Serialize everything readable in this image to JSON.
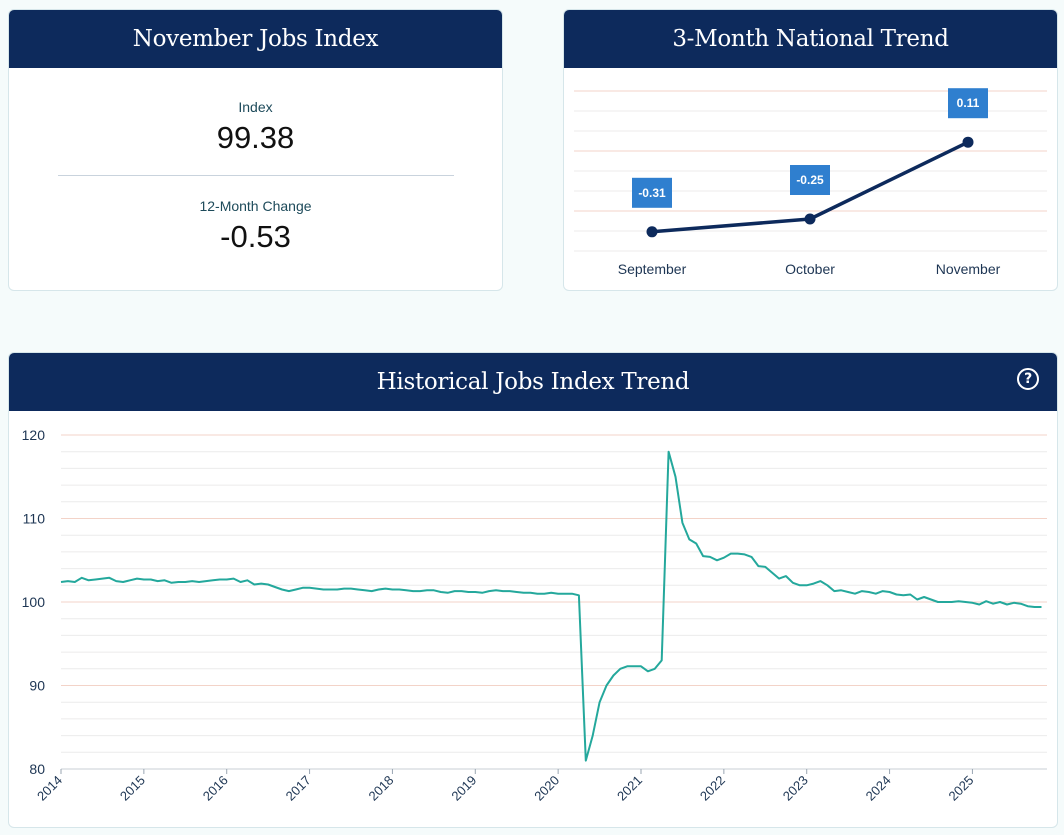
{
  "index_card": {
    "title": "November Jobs Index",
    "index_label": "Index",
    "index_value": "99.38",
    "change_label": "12-Month Change",
    "change_value": "-0.53"
  },
  "trend_card": {
    "title": "3-Month National Trend"
  },
  "historical_card": {
    "title": "Historical Jobs Index Trend",
    "help_icon": "?"
  },
  "colors": {
    "header": "#0d2a5c",
    "trend_line": "#0d2a5c",
    "label_box": "#2f7fcf",
    "hist_line": "#24a89c",
    "grid": "#ecebeb",
    "grid_major": "#f3d3c8"
  },
  "chart_data": [
    {
      "type": "line",
      "title": "3-Month National Trend",
      "categories": [
        "September",
        "October",
        "November"
      ],
      "values": [
        -0.31,
        -0.25,
        0.11
      ],
      "labels": [
        "-0.31",
        "-0.25",
        "0.11"
      ]
    },
    {
      "type": "line",
      "title": "Historical Jobs Index Trend",
      "ylim": [
        80,
        120
      ],
      "yticks": [
        80,
        90,
        100,
        110,
        120
      ],
      "ytick_labels": [
        "80",
        "90",
        "100",
        "110",
        "120"
      ],
      "xlim": [
        2014,
        2025.9
      ],
      "xticks": [
        2014,
        2015,
        2016,
        2017,
        2018,
        2019,
        2020,
        2021,
        2022,
        2023,
        2024,
        2025
      ],
      "xtick_labels": [
        "2014",
        "2015",
        "2016",
        "2017",
        "2018",
        "2019",
        "2020",
        "2021",
        "2022",
        "2023",
        "2024",
        "2025"
      ],
      "series": [
        {
          "name": "Jobs Index",
          "start_year": 2014,
          "step_months": 1,
          "values": [
            102.4,
            102.5,
            102.4,
            102.9,
            102.6,
            102.7,
            102.8,
            102.9,
            102.5,
            102.4,
            102.6,
            102.8,
            102.7,
            102.7,
            102.5,
            102.6,
            102.3,
            102.4,
            102.4,
            102.5,
            102.4,
            102.5,
            102.6,
            102.7,
            102.7,
            102.8,
            102.4,
            102.6,
            102.1,
            102.2,
            102.1,
            101.8,
            101.5,
            101.3,
            101.5,
            101.7,
            101.7,
            101.6,
            101.5,
            101.5,
            101.5,
            101.6,
            101.6,
            101.5,
            101.4,
            101.3,
            101.5,
            101.6,
            101.5,
            101.5,
            101.4,
            101.3,
            101.3,
            101.4,
            101.4,
            101.2,
            101.1,
            101.3,
            101.3,
            101.2,
            101.2,
            101.1,
            101.3,
            101.4,
            101.3,
            101.3,
            101.2,
            101.1,
            101.1,
            101.0,
            101.0,
            101.1,
            101.0,
            101.0,
            101.0,
            100.8,
            81.0,
            84.0,
            88.0,
            90.0,
            91.2,
            92.0,
            92.3,
            92.3,
            92.3,
            91.7,
            92.0,
            93.0,
            118.0,
            115.0,
            109.5,
            107.5,
            107.0,
            105.5,
            105.4,
            105.0,
            105.3,
            105.8,
            105.8,
            105.7,
            105.4,
            104.3,
            104.2,
            103.5,
            102.8,
            103.1,
            102.3,
            102.0,
            102.0,
            102.2,
            102.5,
            102.0,
            101.3,
            101.4,
            101.2,
            101.0,
            101.3,
            101.2,
            101.0,
            101.3,
            101.2,
            100.9,
            100.8,
            100.9,
            100.3,
            100.6,
            100.3,
            100.0,
            100.0,
            100.0,
            100.1,
            100.0,
            99.9,
            99.7,
            100.1,
            99.8,
            100.0,
            99.7,
            99.9,
            99.8,
            99.5,
            99.4,
            99.4
          ]
        }
      ]
    }
  ]
}
